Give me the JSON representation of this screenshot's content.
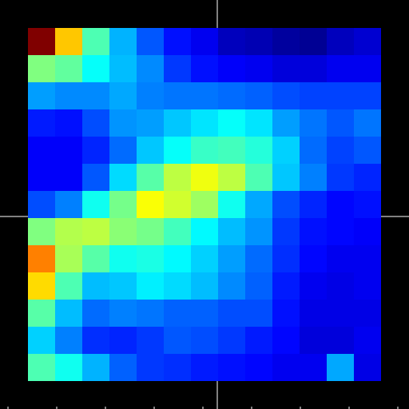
{
  "chart_data": {
    "type": "heatmap",
    "title": "",
    "xlabel": "",
    "ylabel": "",
    "colormap": "jet",
    "value_range": [
      0,
      1
    ],
    "grid": false,
    "legend": "none",
    "rows": 13,
    "cols": 13,
    "values": [
      [
        1.0,
        0.68,
        0.45,
        0.3,
        0.21,
        0.14,
        0.11,
        0.06,
        0.05,
        0.03,
        0.02,
        0.06,
        0.08
      ],
      [
        0.5,
        0.47,
        0.38,
        0.31,
        0.26,
        0.18,
        0.14,
        0.12,
        0.11,
        0.09,
        0.09,
        0.11,
        0.11
      ],
      [
        0.28,
        0.26,
        0.26,
        0.29,
        0.25,
        0.24,
        0.24,
        0.23,
        0.22,
        0.2,
        0.19,
        0.19,
        0.19
      ],
      [
        0.15,
        0.14,
        0.2,
        0.27,
        0.28,
        0.32,
        0.35,
        0.38,
        0.35,
        0.28,
        0.24,
        0.21,
        0.24
      ],
      [
        0.12,
        0.12,
        0.16,
        0.23,
        0.32,
        0.38,
        0.43,
        0.44,
        0.41,
        0.33,
        0.23,
        0.19,
        0.21
      ],
      [
        0.12,
        0.12,
        0.21,
        0.34,
        0.46,
        0.56,
        0.61,
        0.56,
        0.45,
        0.32,
        0.25,
        0.18,
        0.16
      ],
      [
        0.2,
        0.25,
        0.39,
        0.49,
        0.62,
        0.58,
        0.53,
        0.39,
        0.29,
        0.2,
        0.16,
        0.13,
        0.14
      ],
      [
        0.5,
        0.55,
        0.56,
        0.51,
        0.49,
        0.44,
        0.37,
        0.31,
        0.27,
        0.18,
        0.14,
        0.13,
        0.12
      ],
      [
        0.75,
        0.54,
        0.46,
        0.39,
        0.4,
        0.37,
        0.33,
        0.28,
        0.23,
        0.17,
        0.13,
        0.11,
        0.11
      ],
      [
        0.66,
        0.45,
        0.31,
        0.32,
        0.36,
        0.34,
        0.31,
        0.26,
        0.22,
        0.15,
        0.11,
        0.1,
        0.11
      ],
      [
        0.46,
        0.31,
        0.23,
        0.25,
        0.24,
        0.22,
        0.22,
        0.2,
        0.2,
        0.14,
        0.1,
        0.1,
        0.1
      ],
      [
        0.33,
        0.25,
        0.17,
        0.16,
        0.18,
        0.21,
        0.2,
        0.18,
        0.15,
        0.13,
        0.09,
        0.09,
        0.11
      ],
      [
        0.45,
        0.39,
        0.3,
        0.22,
        0.18,
        0.17,
        0.15,
        0.14,
        0.13,
        0.11,
        0.11,
        0.29,
        0.1
      ]
    ]
  }
}
